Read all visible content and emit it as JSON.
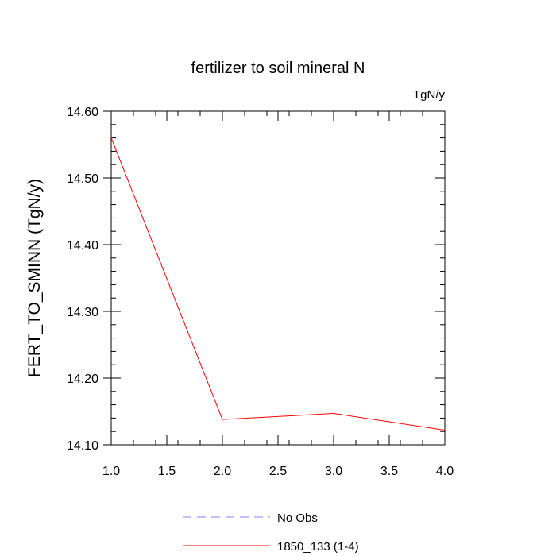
{
  "chart_data": {
    "type": "line",
    "title": "fertilizer to soil mineral N",
    "units_label": "TgN/y",
    "ylabel": "FERT_TO_SMINN  (TgN/y)",
    "xlabel": "",
    "xlim": [
      1.0,
      4.0
    ],
    "ylim": [
      14.1,
      14.6
    ],
    "x_ticks": [
      "1.0",
      "1.5",
      "2.0",
      "2.5",
      "3.0",
      "3.5",
      "4.0"
    ],
    "y_ticks": [
      "14.10",
      "14.20",
      "14.30",
      "14.40",
      "14.50",
      "14.60"
    ],
    "grid": false,
    "legend_position": "bottom",
    "series": [
      {
        "name": "1850_133 (1-4)",
        "color": "#ff0000",
        "style": "solid",
        "x": [
          1,
          2,
          3,
          4
        ],
        "y": [
          14.56,
          14.138,
          14.147,
          14.122
        ]
      }
    ],
    "legend": [
      {
        "label": "No Obs",
        "color": "#8080ff",
        "style": "dashed"
      },
      {
        "label": "1850_133 (1-4)",
        "color": "#ff0000",
        "style": "solid"
      }
    ]
  }
}
